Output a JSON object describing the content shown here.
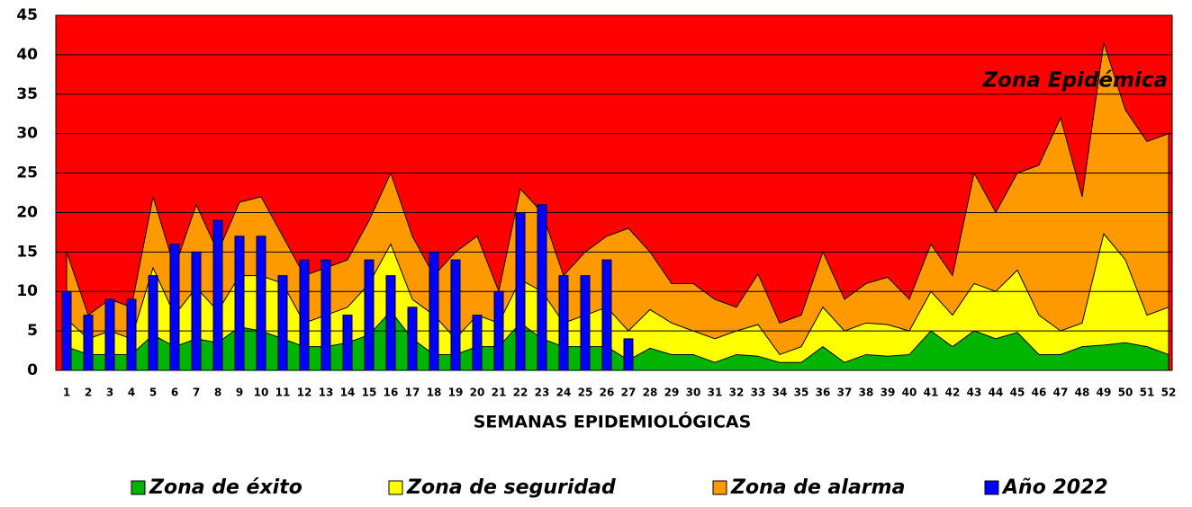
{
  "chart_data": {
    "type": "endemic-channel",
    "x_label": "SEMANAS EPIDEMIOLÓGICAS",
    "annotation": "Zona Epidémica",
    "background_color": "#ff0000",
    "categories": [
      1,
      2,
      3,
      4,
      5,
      6,
      7,
      8,
      9,
      10,
      11,
      12,
      13,
      14,
      15,
      16,
      17,
      18,
      19,
      20,
      21,
      22,
      23,
      24,
      25,
      26,
      27,
      28,
      29,
      30,
      31,
      32,
      33,
      34,
      35,
      36,
      37,
      38,
      39,
      40,
      41,
      42,
      43,
      44,
      45,
      46,
      47,
      48,
      49,
      50,
      51,
      52
    ],
    "ylim": [
      0,
      45
    ],
    "yticks": [
      0,
      5,
      10,
      15,
      20,
      25,
      30,
      35,
      40,
      45
    ],
    "grid": true,
    "series": [
      {
        "name": "Zona de éxito",
        "kind": "area",
        "color": "#00b400",
        "values": [
          3,
          2,
          2,
          2,
          4.5,
          3,
          4,
          3.5,
          5.5,
          5,
          4,
          3,
          3,
          3.5,
          4.5,
          7.5,
          4,
          2,
          2,
          3,
          3,
          6,
          4,
          3,
          3,
          3,
          1.3,
          2.8,
          2,
          2,
          1,
          2,
          1.8,
          1,
          1,
          3,
          1,
          2,
          1.8,
          2,
          5,
          3,
          5,
          4,
          4.8,
          2,
          2,
          3,
          3.2,
          3.5,
          3,
          2
        ]
      },
      {
        "name": "Zona de seguridad",
        "kind": "area",
        "color": "#ffff00",
        "values": [
          6.5,
          4,
          5,
          4,
          13,
          7,
          10.5,
          7.5,
          12,
          12,
          11,
          6,
          7,
          8,
          11,
          16,
          9,
          7,
          4,
          7,
          6,
          11.5,
          10,
          6,
          7,
          8,
          5,
          7.7,
          6,
          5,
          4,
          5,
          5.8,
          2,
          3,
          8,
          5,
          6,
          5.8,
          5,
          10,
          7,
          11,
          10,
          12.7,
          7,
          5,
          6,
          17.3,
          14,
          7,
          8
        ]
      },
      {
        "name": "Zona de alarma",
        "kind": "area",
        "color": "#ff9900",
        "values": [
          15,
          7,
          9,
          8,
          22,
          13,
          21,
          15,
          21.3,
          22,
          17,
          12,
          13,
          14,
          19,
          25,
          17,
          12,
          15,
          17,
          10,
          23,
          20,
          12,
          15,
          17,
          18,
          15,
          11,
          11,
          9,
          8,
          12.2,
          6,
          7,
          15,
          9,
          11,
          11.8,
          9,
          16,
          12,
          25,
          20,
          25,
          26,
          32,
          22,
          41.5,
          33,
          29,
          30
        ]
      },
      {
        "name": "Año 2022",
        "kind": "bar",
        "color": "#0000ff",
        "values": [
          10,
          7,
          9,
          9,
          12,
          16,
          15,
          19,
          17,
          17,
          12,
          14,
          14,
          7,
          14,
          12,
          8,
          15,
          14,
          7,
          10,
          20,
          21,
          12,
          12,
          14,
          4,
          null,
          null,
          null,
          null,
          null,
          null,
          null,
          null,
          null,
          null,
          null,
          null,
          null,
          null,
          null,
          null,
          null,
          null,
          null,
          null,
          null,
          null,
          null,
          null,
          null
        ]
      }
    ]
  }
}
